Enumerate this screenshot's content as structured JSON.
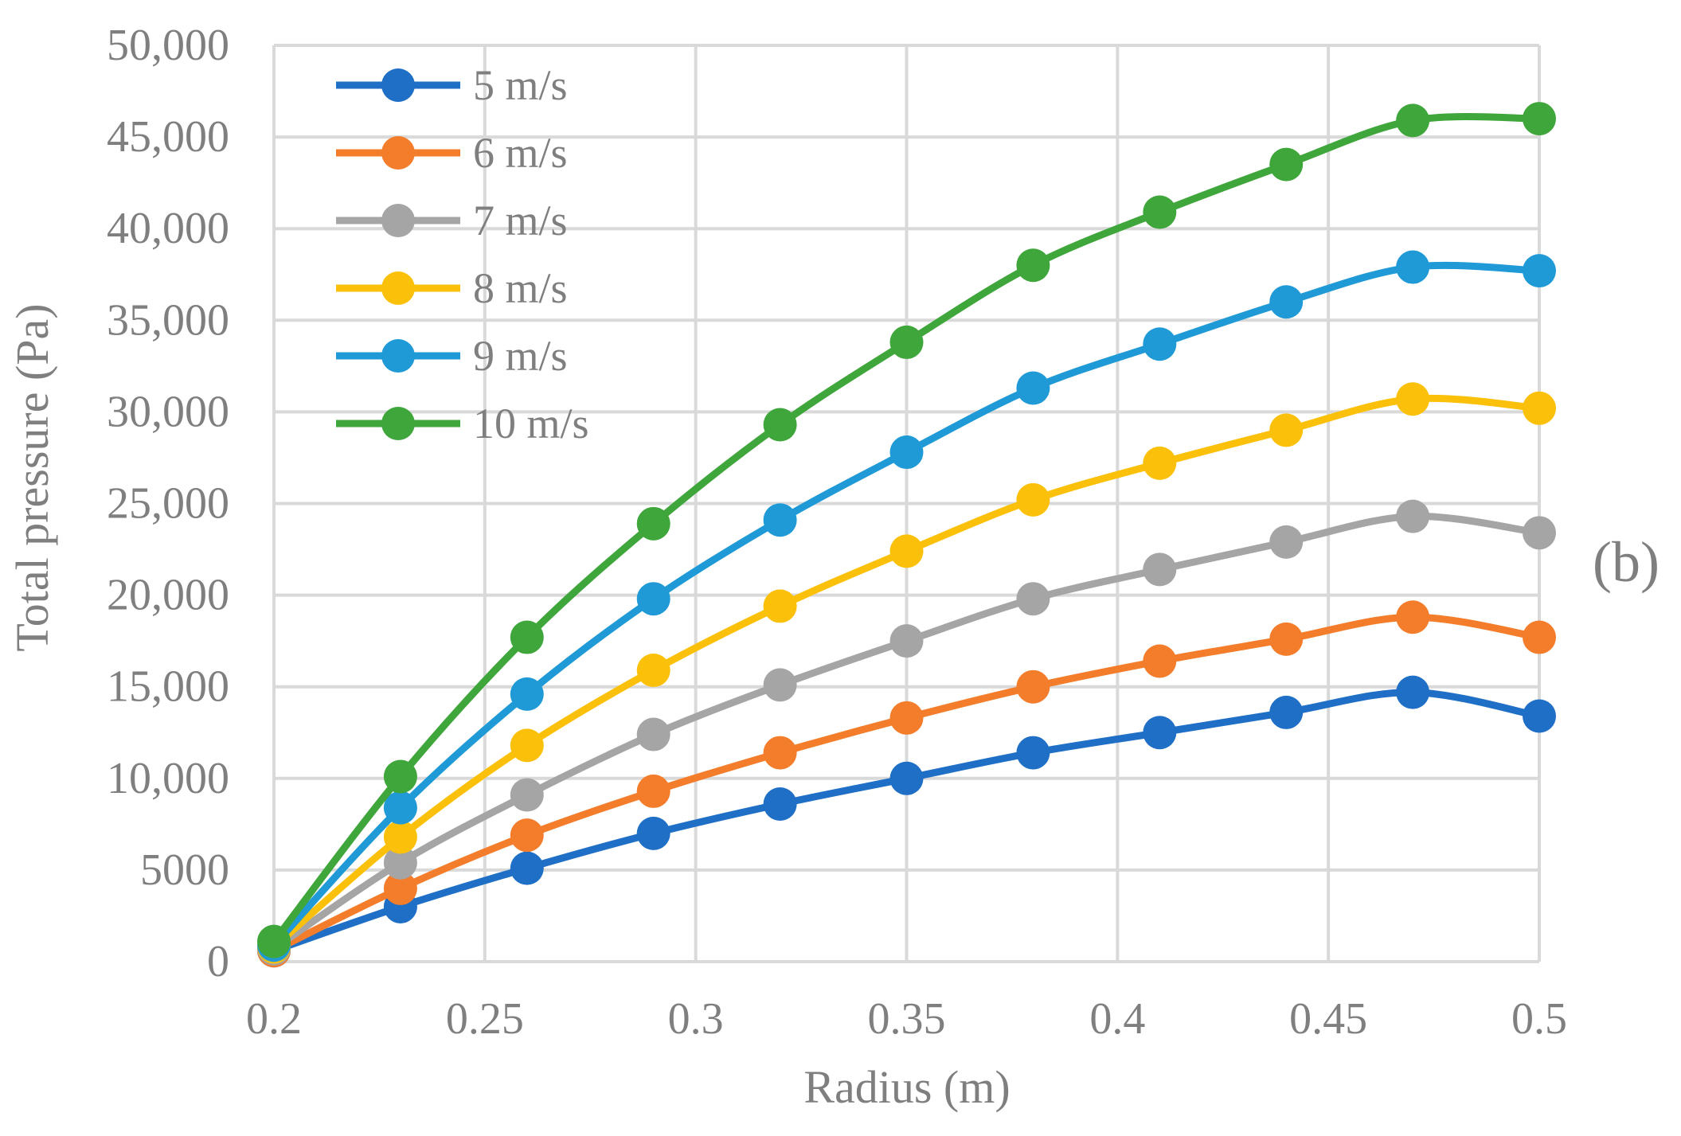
{
  "chart_data": {
    "type": "line",
    "title": "",
    "panel_label": "(b)",
    "xlabel": "Radius (m)",
    "ylabel": "Total pressure (Pa)",
    "xlim": [
      0.2,
      0.5
    ],
    "ylim": [
      0,
      50000
    ],
    "x_ticks": [
      0.2,
      0.25,
      0.3,
      0.35,
      0.4,
      0.45,
      0.5
    ],
    "x_tick_labels": [
      "0.2",
      "0.25",
      "0.3",
      "0.35",
      "0.4",
      "0.45",
      "0.5"
    ],
    "y_ticks": [
      0,
      5000,
      10000,
      15000,
      20000,
      25000,
      30000,
      35000,
      40000,
      45000,
      50000
    ],
    "y_tick_labels": [
      "0",
      "5000",
      "10,000",
      "15,000",
      "20,000",
      "25,000",
      "30,000",
      "35,000",
      "40,000",
      "45,000",
      "50,000"
    ],
    "grid": true,
    "legend_position": "top-left",
    "x": [
      0.2,
      0.23,
      0.26,
      0.29,
      0.32,
      0.35,
      0.38,
      0.41,
      0.44,
      0.47,
      0.5
    ],
    "series": [
      {
        "name": "5 m/s",
        "color": "#1f6fc6",
        "values": [
          600,
          3000,
          5100,
          7000,
          8600,
          10000,
          11400,
          12500,
          13600,
          14700,
          13400
        ]
      },
      {
        "name": "6 m/s",
        "color": "#f47d2b",
        "values": [
          600,
          4000,
          6900,
          9300,
          11400,
          13300,
          15000,
          16400,
          17600,
          18800,
          17700
        ]
      },
      {
        "name": "7 m/s",
        "color": "#a5a5a5",
        "values": [
          700,
          5400,
          9100,
          12400,
          15100,
          17500,
          19800,
          21400,
          22900,
          24300,
          23400
        ]
      },
      {
        "name": "8 m/s",
        "color": "#fbc10a",
        "values": [
          800,
          6800,
          11800,
          15900,
          19400,
          22400,
          25200,
          27200,
          29000,
          30700,
          30200
        ]
      },
      {
        "name": "9 m/s",
        "color": "#1f9ad6",
        "values": [
          900,
          8400,
          14600,
          19800,
          24100,
          27800,
          31300,
          33700,
          36000,
          37900,
          37700
        ]
      },
      {
        "name": "10 m/s",
        "color": "#3ea63a",
        "values": [
          1100,
          10100,
          17700,
          23900,
          29300,
          33800,
          38000,
          40900,
          43500,
          45900,
          46000
        ]
      }
    ]
  }
}
